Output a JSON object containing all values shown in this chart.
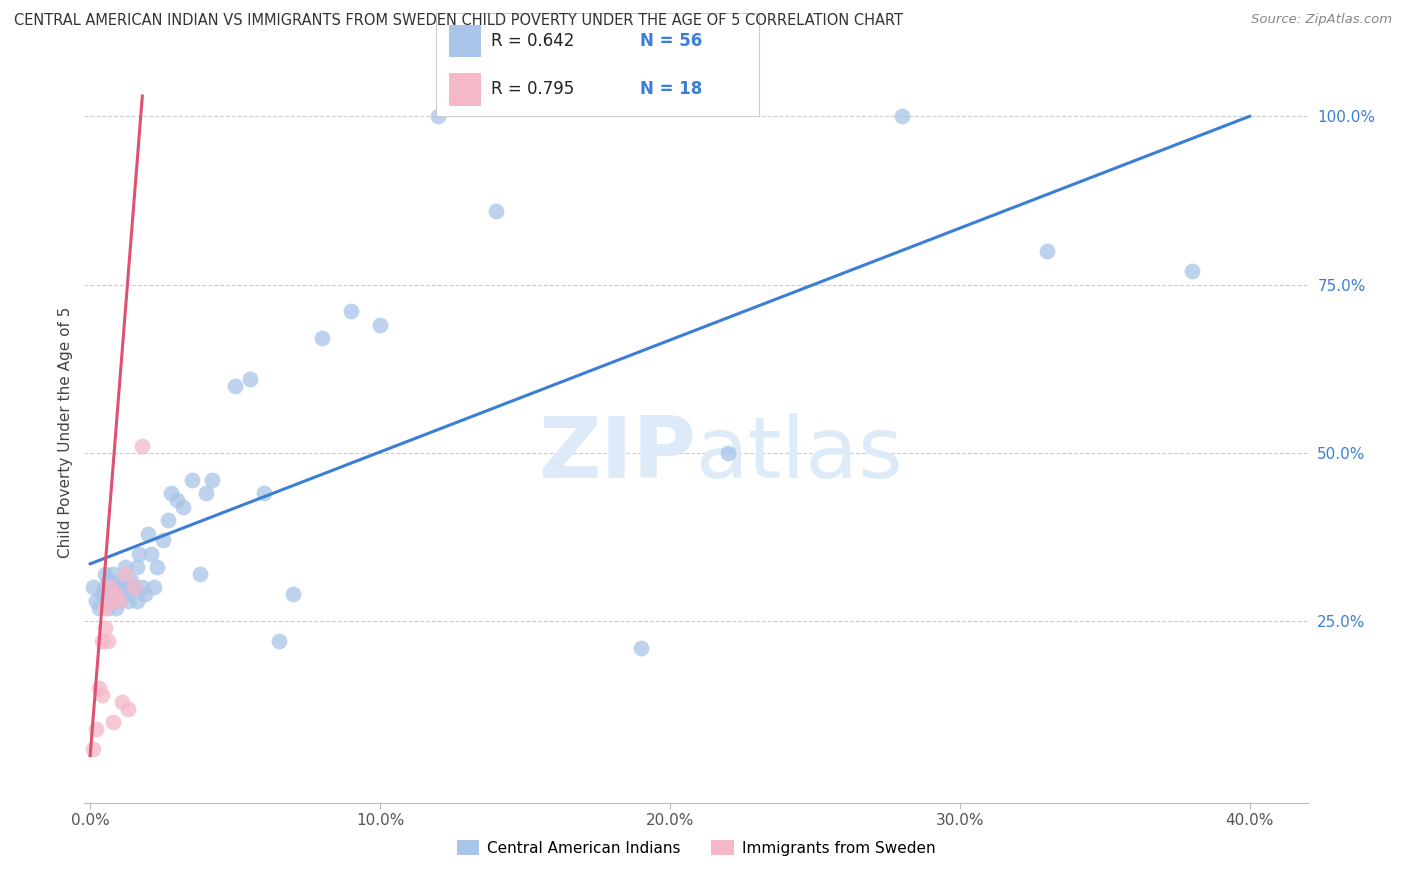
{
  "title": "CENTRAL AMERICAN INDIAN VS IMMIGRANTS FROM SWEDEN CHILD POVERTY UNDER THE AGE OF 5 CORRELATION CHART",
  "source": "Source: ZipAtlas.com",
  "ylabel": "Child Poverty Under the Age of 5",
  "x_tick_labels": [
    "0.0%",
    "10.0%",
    "20.0%",
    "30.0%",
    "40.0%"
  ],
  "x_tick_values": [
    0.0,
    0.1,
    0.2,
    0.3,
    0.4
  ],
  "y_tick_labels": [
    "100.0%",
    "75.0%",
    "50.0%",
    "25.0%"
  ],
  "y_tick_values": [
    1.0,
    0.75,
    0.5,
    0.25
  ],
  "xlim": [
    -0.002,
    0.42
  ],
  "ylim": [
    -0.02,
    1.08
  ],
  "legend_labels": [
    "Central American Indians",
    "Immigrants from Sweden"
  ],
  "legend_R": [
    "R = 0.642",
    "R = 0.795"
  ],
  "legend_N": [
    "N = 56",
    "N = 18"
  ],
  "blue_color": "#a8c4e8",
  "pink_color": "#f5b8c8",
  "blue_line_color": "#3a7fd5",
  "pink_line_color": "#e05070",
  "watermark_color": "#ddeaf8",
  "grid_color": "#cccccc",
  "blue_scatter_x": [
    0.001,
    0.002,
    0.003,
    0.004,
    0.005,
    0.005,
    0.006,
    0.006,
    0.007,
    0.007,
    0.008,
    0.008,
    0.009,
    0.009,
    0.01,
    0.01,
    0.011,
    0.012,
    0.012,
    0.013,
    0.013,
    0.014,
    0.015,
    0.016,
    0.016,
    0.017,
    0.018,
    0.019,
    0.02,
    0.021,
    0.022,
    0.023,
    0.025,
    0.027,
    0.028,
    0.03,
    0.032,
    0.035,
    0.038,
    0.04,
    0.042,
    0.05,
    0.055,
    0.06,
    0.065,
    0.07,
    0.08,
    0.09,
    0.1,
    0.12,
    0.14,
    0.19,
    0.22,
    0.28,
    0.33,
    0.38
  ],
  "blue_scatter_y": [
    0.3,
    0.28,
    0.27,
    0.29,
    0.3,
    0.32,
    0.27,
    0.31,
    0.28,
    0.3,
    0.29,
    0.32,
    0.27,
    0.3,
    0.31,
    0.28,
    0.3,
    0.29,
    0.33,
    0.3,
    0.28,
    0.31,
    0.3,
    0.28,
    0.33,
    0.35,
    0.3,
    0.29,
    0.38,
    0.35,
    0.3,
    0.33,
    0.37,
    0.4,
    0.44,
    0.43,
    0.42,
    0.46,
    0.32,
    0.44,
    0.46,
    0.6,
    0.61,
    0.44,
    0.22,
    0.29,
    0.67,
    0.71,
    0.69,
    1.0,
    0.86,
    0.21,
    0.5,
    1.0,
    0.8,
    0.77
  ],
  "pink_scatter_x": [
    0.001,
    0.002,
    0.003,
    0.004,
    0.004,
    0.005,
    0.005,
    0.006,
    0.007,
    0.007,
    0.008,
    0.009,
    0.01,
    0.011,
    0.012,
    0.013,
    0.015,
    0.018
  ],
  "pink_scatter_y": [
    0.06,
    0.09,
    0.15,
    0.14,
    0.22,
    0.24,
    0.27,
    0.22,
    0.28,
    0.3,
    0.1,
    0.29,
    0.28,
    0.13,
    0.32,
    0.12,
    0.3,
    0.51
  ],
  "blue_line_x0": 0.0,
  "blue_line_y0": 0.335,
  "blue_line_x1": 0.4,
  "blue_line_y1": 1.0,
  "pink_line_x0": 0.0,
  "pink_line_y0": 0.05,
  "pink_line_x1": 0.018,
  "pink_line_y1": 1.03
}
